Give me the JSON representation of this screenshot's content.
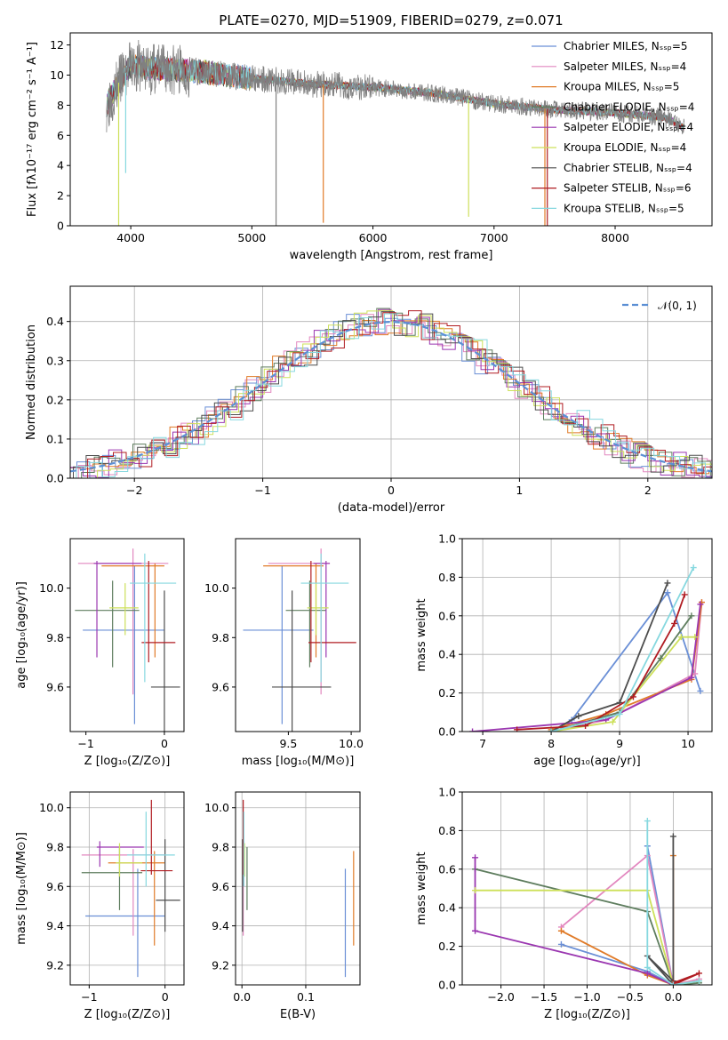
{
  "colors": [
    "#6a8fd6",
    "#e287bf",
    "#e07b28",
    "#5e7d5e",
    "#9a36b0",
    "#cde05a",
    "#4d4d4d",
    "#b01c22",
    "#86d8df"
  ],
  "chart_data": [
    {
      "id": "spectrum",
      "type": "line",
      "title": "PLATE=0270, MJD=51909, FIBERID=0279, z=0.071",
      "xlabel": "wavelength [Angstrom, rest frame]",
      "ylabel": "Flux [fλ10⁻¹⁷ erg cm⁻² s⁻¹ A⁻¹]",
      "xlim": [
        3500,
        8800
      ],
      "ylim": [
        0,
        12.8
      ],
      "xticks": [
        4000,
        5000,
        6000,
        7000,
        8000
      ],
      "yticks": [
        0,
        2,
        4,
        6,
        8,
        10,
        12
      ],
      "grid": false,
      "legend_position": "upper right",
      "legend": [
        "Chabrier MILES, Nₛₛₚ=5",
        "Salpeter MILES, Nₛₛₚ=4",
        "Kroupa MILES, Nₛₛₚ=5",
        "Chabrier ELODIE, Nₛₛₚ=4",
        "Salpeter ELODIE, Nₛₛₚ=4",
        "Kroupa ELODIE, Nₛₛₚ=4",
        "Chabrier STELIB, Nₛₛₚ=4",
        "Salpeter STELIB, Nₛₛₚ=6",
        "Kroupa STELIB, Nₛₛₚ=5"
      ],
      "data_series_color": "#808080",
      "data_series_range": [
        3800,
        8570
      ],
      "continuum": [
        [
          3800,
          8.0
        ],
        [
          3900,
          9.5
        ],
        [
          4000,
          10.6
        ],
        [
          4200,
          10.4
        ],
        [
          4500,
          10.3
        ],
        [
          4800,
          10.0
        ],
        [
          5000,
          9.8
        ],
        [
          5500,
          9.4
        ],
        [
          6000,
          9.2
        ],
        [
          6500,
          8.8
        ],
        [
          7000,
          8.1
        ],
        [
          7500,
          7.7
        ],
        [
          8000,
          7.5
        ],
        [
          8400,
          7.2
        ],
        [
          8570,
          6.5
        ]
      ],
      "spikes": [
        {
          "x": 3900,
          "y": 0.0,
          "color": "#cde05a"
        },
        {
          "x": 3958,
          "y": 3.5,
          "color": "#86d8df"
        },
        {
          "x": 5200,
          "y": 0.0,
          "color": "#808080"
        },
        {
          "x": 5590,
          "y": 0.2,
          "color": "#e07b28"
        },
        {
          "x": 6790,
          "y": 0.6,
          "color": "#cde05a"
        },
        {
          "x": 7420,
          "y": 0.0,
          "color": "#e07b28"
        },
        {
          "x": 7440,
          "y": 0.0,
          "color": "#b01c22"
        }
      ]
    },
    {
      "id": "residuals",
      "type": "histogram",
      "xlabel": "(data-model)/error",
      "ylabel": "Normed distribution",
      "xlim": [
        -2.5,
        2.5
      ],
      "ylim": [
        0,
        0.49
      ],
      "xticks": [
        -2,
        -1,
        0,
        1,
        2
      ],
      "yticks": [
        0.0,
        0.1,
        0.2,
        0.3,
        0.4
      ],
      "grid": true,
      "legend_position": "upper right",
      "reference_curve": {
        "name": "𝒩(0, 1)",
        "mean": 0,
        "sigma": 1,
        "color": "#5b8fd4",
        "style": "dashed"
      }
    },
    {
      "id": "age-vs-Z",
      "type": "errorbar",
      "xlabel": "Z [log₁₀(Z/Z⊙)]",
      "ylabel": "age  [log₁₀(age/yr)]",
      "xlim": [
        -1.2,
        0.25
      ],
      "ylim": [
        9.42,
        10.2
      ],
      "xticks": [
        -1,
        0
      ],
      "yticks": [
        9.6,
        9.8,
        10.0
      ],
      "grid": false,
      "points": [
        {
          "x": -0.38,
          "y": 9.83,
          "xl": -1.04,
          "xh": 0.0,
          "yl": 9.45,
          "yh": 10.09,
          "color": "#6a8fd6"
        },
        {
          "x": -0.4,
          "y": 10.1,
          "xl": -1.1,
          "xh": 0.05,
          "yl": 9.57,
          "yh": 10.16,
          "color": "#e287bf"
        },
        {
          "x": -0.12,
          "y": 10.09,
          "xl": -0.8,
          "xh": 0.0,
          "yl": 9.72,
          "yh": 10.1,
          "color": "#e07b28"
        },
        {
          "x": -0.66,
          "y": 9.91,
          "xl": -1.14,
          "xh": -0.32,
          "yl": 9.68,
          "yh": 10.03,
          "color": "#5e7d5e"
        },
        {
          "x": -0.86,
          "y": 10.1,
          "xl": -0.9,
          "xh": -0.29,
          "yl": 9.72,
          "yh": 10.11,
          "color": "#9a36b0"
        },
        {
          "x": -0.5,
          "y": 9.92,
          "xl": -0.7,
          "xh": -0.33,
          "yl": 9.81,
          "yh": 10.02,
          "color": "#cde05a"
        },
        {
          "x": 0.0,
          "y": 9.6,
          "xl": -0.17,
          "xh": 0.2,
          "yl": 9.39,
          "yh": 9.99,
          "color": "#4d4d4d"
        },
        {
          "x": -0.2,
          "y": 9.78,
          "xl": -0.29,
          "xh": 0.14,
          "yl": 9.7,
          "yh": 10.11,
          "color": "#b01c22"
        },
        {
          "x": -0.25,
          "y": 10.02,
          "xl": -0.44,
          "xh": 0.15,
          "yl": 9.62,
          "yh": 10.14,
          "color": "#86d8df"
        }
      ]
    },
    {
      "id": "age-vs-mass",
      "type": "errorbar",
      "xlabel": "mass [log₁₀(M/M⊙)]",
      "ylabel": "",
      "xlim": [
        9.08,
        10.07
      ],
      "ylim": [
        9.42,
        10.2
      ],
      "xticks": [
        9.5,
        10.0
      ],
      "yticks": [
        9.6,
        9.8,
        10.0
      ],
      "grid": false,
      "points": [
        {
          "x": 9.45,
          "y": 9.83,
          "xl": 9.14,
          "xh": 9.7,
          "yl": 9.45,
          "yh": 10.09,
          "color": "#6a8fd6"
        },
        {
          "x": 9.76,
          "y": 10.1,
          "xl": 9.34,
          "xh": 9.83,
          "yl": 9.57,
          "yh": 10.16,
          "color": "#e287bf"
        },
        {
          "x": 9.72,
          "y": 10.09,
          "xl": 9.3,
          "xh": 9.78,
          "yl": 9.72,
          "yh": 10.1,
          "color": "#e07b28"
        },
        {
          "x": 9.67,
          "y": 9.91,
          "xl": 9.48,
          "xh": 9.8,
          "yl": 9.68,
          "yh": 10.03,
          "color": "#5e7d5e"
        },
        {
          "x": 9.8,
          "y": 10.1,
          "xl": 9.7,
          "xh": 9.83,
          "yl": 9.72,
          "yh": 10.11,
          "color": "#9a36b0"
        },
        {
          "x": 9.72,
          "y": 9.92,
          "xl": 9.65,
          "xh": 9.82,
          "yl": 9.81,
          "yh": 10.02,
          "color": "#cde05a"
        },
        {
          "x": 9.53,
          "y": 9.6,
          "xl": 9.37,
          "xh": 9.84,
          "yl": 9.39,
          "yh": 9.99,
          "color": "#4d4d4d"
        },
        {
          "x": 9.68,
          "y": 9.78,
          "xl": 9.66,
          "xh": 10.04,
          "yl": 9.7,
          "yh": 10.11,
          "color": "#b01c22"
        },
        {
          "x": 9.76,
          "y": 10.02,
          "xl": 9.6,
          "xh": 9.98,
          "yl": 9.62,
          "yh": 10.14,
          "color": "#86d8df"
        }
      ]
    },
    {
      "id": "weight-vs-age",
      "type": "line",
      "xlabel": "age  [log₁₀(age/yr)]",
      "ylabel": "mass weight",
      "xlim": [
        6.7,
        10.35
      ],
      "ylim": [
        0,
        1
      ],
      "xticks": [
        7,
        8,
        9,
        10
      ],
      "yticks": [
        0.0,
        0.2,
        0.4,
        0.6,
        0.8,
        1.0
      ],
      "grid": true,
      "series": [
        {
          "color": "#6a8fd6",
          "points": [
            [
              8.0,
              0.0
            ],
            [
              8.3,
              0.06
            ],
            [
              9.7,
              0.72
            ],
            [
              10.18,
              0.21
            ]
          ]
        },
        {
          "color": "#e287bf",
          "points": [
            [
              8.0,
              0.0
            ],
            [
              8.8,
              0.06
            ],
            [
              10.1,
              0.3
            ],
            [
              10.2,
              0.67
            ]
          ]
        },
        {
          "color": "#e07b28",
          "points": [
            [
              8.0,
              0.01
            ],
            [
              8.8,
              0.09
            ],
            [
              10.05,
              0.27
            ],
            [
              10.2,
              0.67
            ]
          ]
        },
        {
          "color": "#5e7d5e",
          "points": [
            [
              8.0,
              0.0
            ],
            [
              9.0,
              0.1
            ],
            [
              9.6,
              0.38
            ],
            [
              10.05,
              0.6
            ]
          ]
        },
        {
          "color": "#9a36b0",
          "points": [
            [
              6.85,
              0.0
            ],
            [
              8.8,
              0.06
            ],
            [
              10.05,
              0.28
            ],
            [
              10.18,
              0.66
            ]
          ]
        },
        {
          "color": "#cde05a",
          "points": [
            [
              8.0,
              0.0
            ],
            [
              8.9,
              0.05
            ],
            [
              9.9,
              0.49
            ],
            [
              10.1,
              0.49
            ]
          ]
        },
        {
          "color": "#4d4d4d",
          "points": [
            [
              8.0,
              0.0
            ],
            [
              8.4,
              0.08
            ],
            [
              9.0,
              0.15
            ],
            [
              9.7,
              0.77
            ]
          ]
        },
        {
          "color": "#b01c22",
          "points": [
            [
              7.5,
              0.01
            ],
            [
              8.5,
              0.03
            ],
            [
              9.2,
              0.18
            ],
            [
              9.8,
              0.56
            ],
            [
              9.95,
              0.71
            ]
          ]
        },
        {
          "color": "#86d8df",
          "points": [
            [
              8.0,
              0.0
            ],
            [
              9.0,
              0.09
            ],
            [
              10.08,
              0.85
            ]
          ]
        }
      ]
    },
    {
      "id": "mass-vs-Z",
      "type": "errorbar",
      "xlabel": "Z [log₁₀(Z/Z⊙)]",
      "ylabel": "mass [log₁₀(M/M⊙)]",
      "xlim": [
        -1.25,
        0.25
      ],
      "ylim": [
        9.1,
        10.08
      ],
      "xticks": [
        -1,
        0
      ],
      "yticks": [
        9.2,
        9.4,
        9.6,
        9.8,
        10.0
      ],
      "grid": true,
      "points": [
        {
          "x": -0.36,
          "y": 9.45,
          "xl": -1.05,
          "xh": 0.0,
          "yl": 9.14,
          "yh": 9.69,
          "color": "#6a8fd6"
        },
        {
          "x": -0.42,
          "y": 9.76,
          "xl": -1.1,
          "xh": 0.0,
          "yl": 9.35,
          "yh": 9.79,
          "color": "#e287bf"
        },
        {
          "x": -0.14,
          "y": 9.72,
          "xl": -0.75,
          "xh": 0.0,
          "yl": 9.3,
          "yh": 9.78,
          "color": "#e07b28"
        },
        {
          "x": -0.6,
          "y": 9.67,
          "xl": -1.1,
          "xh": -0.3,
          "yl": 9.48,
          "yh": 9.8,
          "color": "#5e7d5e"
        },
        {
          "x": -0.86,
          "y": 9.8,
          "xl": -0.9,
          "xh": -0.28,
          "yl": 9.7,
          "yh": 9.83,
          "color": "#9a36b0"
        },
        {
          "x": -0.6,
          "y": 9.72,
          "xl": -0.65,
          "xh": -0.3,
          "yl": 9.65,
          "yh": 9.82,
          "color": "#cde05a"
        },
        {
          "x": 0.0,
          "y": 9.53,
          "xl": -0.12,
          "xh": 0.2,
          "yl": 9.37,
          "yh": 9.84,
          "color": "#4d4d4d"
        },
        {
          "x": -0.18,
          "y": 9.68,
          "xl": -0.32,
          "xh": 0.1,
          "yl": 9.66,
          "yh": 10.04,
          "color": "#b01c22"
        },
        {
          "x": -0.25,
          "y": 9.76,
          "xl": -0.5,
          "xh": 0.13,
          "yl": 9.6,
          "yh": 9.98,
          "color": "#86d8df"
        }
      ]
    },
    {
      "id": "mass-vs-EBV",
      "type": "errorbar",
      "xlabel": "E(B-V)",
      "ylabel": "",
      "xlim": [
        -0.01,
        0.185
      ],
      "ylim": [
        9.1,
        10.08
      ],
      "xticks": [
        0.0,
        0.1
      ],
      "yticks": [
        9.2,
        9.4,
        9.6,
        9.8,
        10.0
      ],
      "grid": true,
      "vbars": [
        {
          "x": 0.162,
          "yl": 9.14,
          "yh": 9.69,
          "color": "#6a8fd6"
        },
        {
          "x": 0.002,
          "yl": 9.35,
          "yh": 9.79,
          "color": "#e287bf"
        },
        {
          "x": 0.175,
          "yl": 9.3,
          "yh": 9.78,
          "color": "#e07b28"
        },
        {
          "x": 0.008,
          "yl": 9.48,
          "yh": 9.8,
          "color": "#5e7d5e"
        },
        {
          "x": 0.003,
          "yl": 9.7,
          "yh": 9.83,
          "color": "#9a36b0"
        },
        {
          "x": 0.004,
          "yl": 9.65,
          "yh": 9.82,
          "color": "#cde05a"
        },
        {
          "x": 0.001,
          "yl": 9.37,
          "yh": 9.84,
          "color": "#4d4d4d"
        },
        {
          "x": 0.002,
          "yl": 9.66,
          "yh": 10.04,
          "color": "#b01c22"
        },
        {
          "x": 0.003,
          "yl": 9.6,
          "yh": 9.98,
          "color": "#86d8df"
        }
      ]
    },
    {
      "id": "weight-vs-Z",
      "type": "line",
      "xlabel": "Z [log₁₀(Z/Z⊙)]",
      "ylabel": "mass weight",
      "xlim": [
        -2.45,
        0.45
      ],
      "ylim": [
        0,
        1
      ],
      "xticks": [
        -2.0,
        -1.5,
        -1.0,
        -0.5,
        0.0
      ],
      "yticks": [
        0.0,
        0.2,
        0.4,
        0.6,
        0.8,
        1.0
      ],
      "grid": true,
      "series": [
        {
          "color": "#6a8fd6",
          "points": [
            [
              -1.3,
              0.21
            ],
            [
              -0.3,
              0.07
            ],
            [
              0.0,
              0.0
            ],
            [
              -0.3,
              0.72
            ]
          ]
        },
        {
          "color": "#e287bf",
          "points": [
            [
              -1.3,
              0.3
            ],
            [
              -0.3,
              0.67
            ],
            [
              0.0,
              0.0
            ],
            [
              0.3,
              0.03
            ]
          ]
        },
        {
          "color": "#e07b28",
          "points": [
            [
              -1.3,
              0.28
            ],
            [
              -0.3,
              0.05
            ],
            [
              0.0,
              0.0
            ],
            [
              0.0,
              0.67
            ]
          ]
        },
        {
          "color": "#5e7d5e",
          "points": [
            [
              -2.3,
              0.6
            ],
            [
              -0.3,
              0.38
            ],
            [
              0.0,
              0.0
            ],
            [
              0.3,
              0.01
            ]
          ]
        },
        {
          "color": "#9a36b0",
          "points": [
            [
              -2.3,
              0.66
            ],
            [
              -2.3,
              0.28
            ],
            [
              -0.3,
              0.06
            ],
            [
              0.0,
              0.0
            ]
          ]
        },
        {
          "color": "#cde05a",
          "points": [
            [
              -2.3,
              0.49
            ],
            [
              -0.3,
              0.49
            ],
            [
              0.0,
              0.0
            ],
            [
              0.3,
              0.02
            ]
          ]
        },
        {
          "color": "#4d4d4d",
          "points": [
            [
              0.0,
              0.77
            ],
            [
              0.0,
              0.0
            ],
            [
              -0.3,
              0.15
            ],
            [
              0.0,
              0.02
            ]
          ]
        },
        {
          "color": "#b01c22",
          "points": [
            [
              0.0,
              0.0
            ],
            [
              0.3,
              0.06
            ],
            [
              0.0,
              0.01
            ]
          ]
        },
        {
          "color": "#86d8df",
          "points": [
            [
              -0.3,
              0.85
            ],
            [
              -0.3,
              0.09
            ],
            [
              0.0,
              0.0
            ],
            [
              0.3,
              0.02
            ]
          ]
        }
      ]
    }
  ]
}
